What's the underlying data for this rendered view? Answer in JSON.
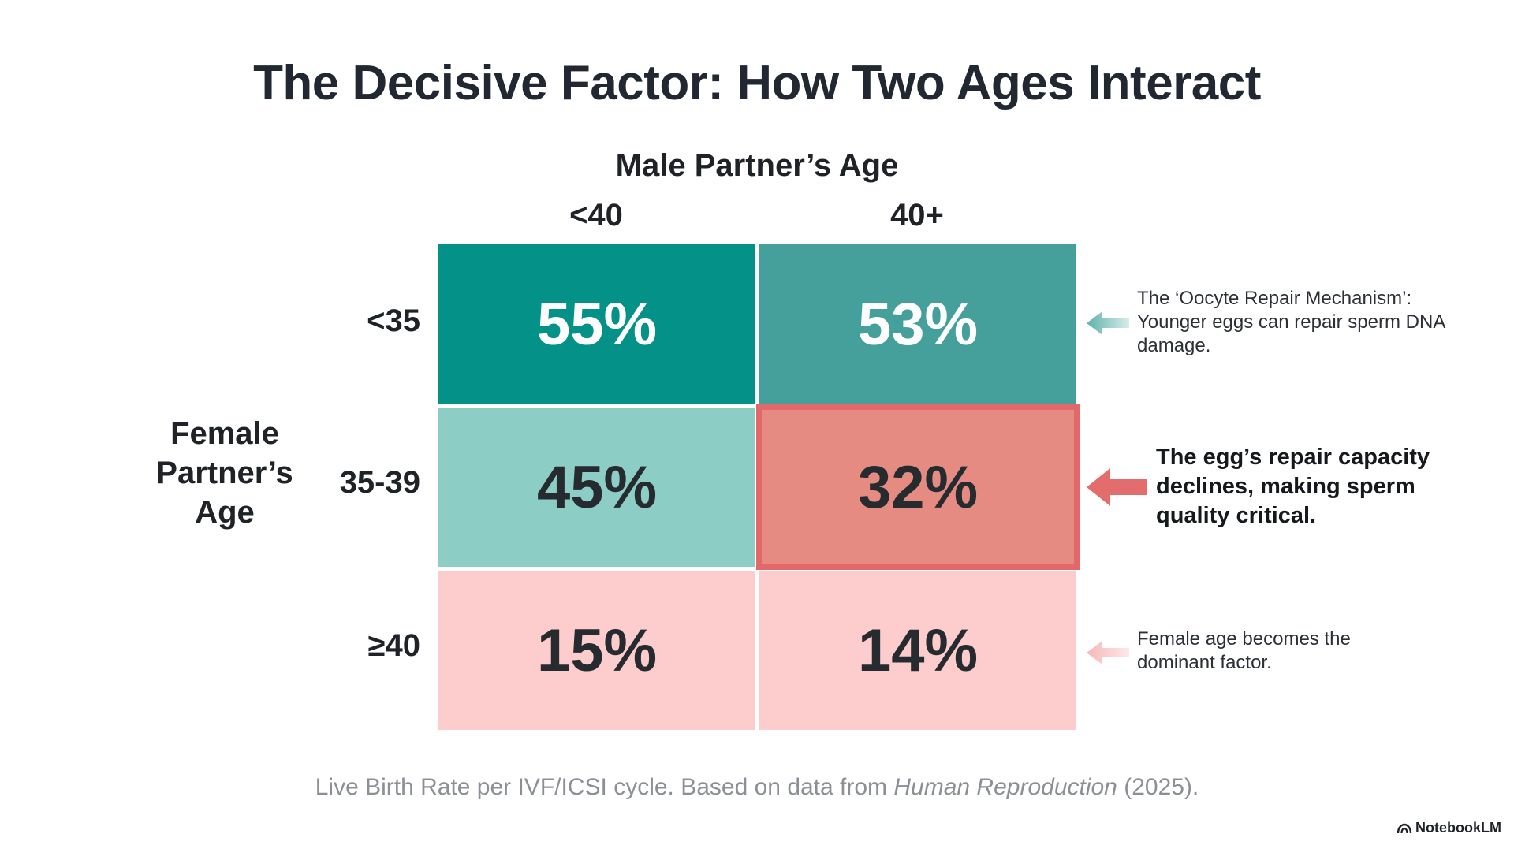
{
  "chart_data": {
    "type": "heatmap",
    "title": "The Decisive Factor: How Two Ages Interact",
    "x_axis_label": "Male Partner’s Age",
    "y_axis_label": "Female Partner’s Age",
    "columns": [
      "<40",
      "40+"
    ],
    "rows": [
      "<35",
      "35-39",
      "≥40"
    ],
    "values": [
      [
        55,
        53
      ],
      [
        45,
        32
      ],
      [
        15,
        14
      ]
    ],
    "value_labels": [
      [
        "55%",
        "53%"
      ],
      [
        "45%",
        "32%"
      ],
      [
        "15%",
        "14%"
      ]
    ],
    "highlight": {
      "row": 1,
      "col": 1
    },
    "cell_colors": [
      [
        "#039188",
        "#45a09c"
      ],
      [
        "#8ccdc5",
        "#e58b82"
      ],
      [
        "#fdcccc",
        "#fdcccc"
      ]
    ],
    "value_text_colors": [
      [
        "#ffffff",
        "#ffffff"
      ],
      [
        "#262b30",
        "#262b30"
      ],
      [
        "#262b30",
        "#262b30"
      ]
    ],
    "annotations": [
      {
        "row": 0,
        "text": "The ‘Oocyte Repair Mechanism’: Younger eggs can repair sperm DNA damage.",
        "arrow_color": "#5fb1ab"
      },
      {
        "row": 1,
        "text": "The egg’s repair capacity declines, making sperm quality critical.",
        "arrow_color": "#e26d6c"
      },
      {
        "row": 2,
        "text": "Female age becomes the dominant factor.",
        "arrow_color": "#f7b6b6"
      }
    ],
    "footnote_pre": "Live Birth Rate per IVF/ICSI cycle. Based on data from ",
    "footnote_source": "Human Reproduction",
    "footnote_post": " (2025).",
    "highlight_border_color": "#e2686a"
  },
  "brand": {
    "label": "NotebookLM",
    "icon": "notebooklm-logo-icon"
  }
}
